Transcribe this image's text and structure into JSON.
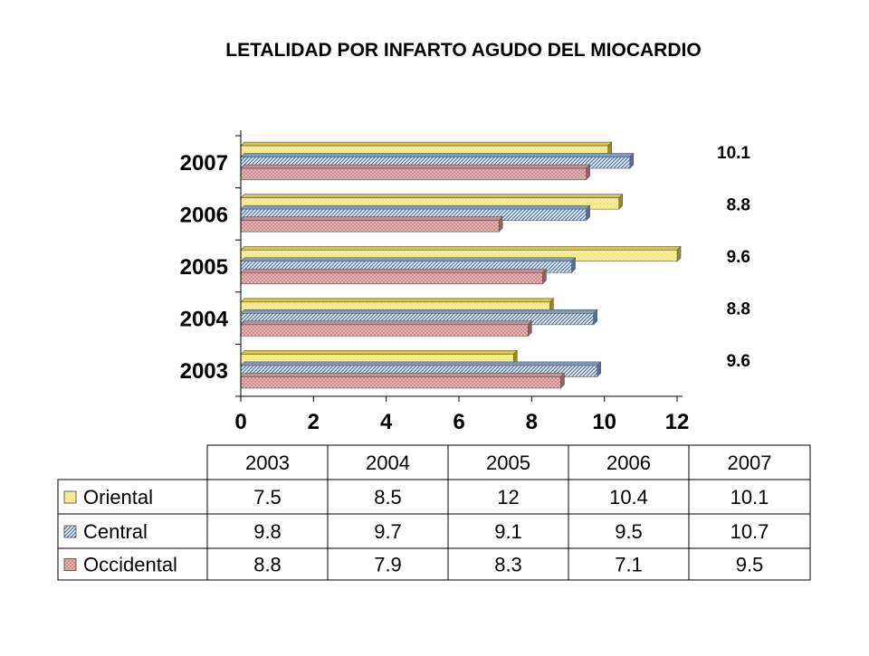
{
  "chart_data": {
    "type": "bar",
    "orientation": "horizontal",
    "title": "LETALIDAD POR INFARTO AGUDO DEL MIOCARDIO",
    "categories": [
      "2003",
      "2004",
      "2005",
      "2006",
      "2007"
    ],
    "series": [
      {
        "name": "Oriental",
        "values": [
          7.5,
          8.5,
          12,
          10.4,
          10.1
        ]
      },
      {
        "name": "Central",
        "values": [
          9.8,
          9.7,
          9.1,
          9.5,
          10.7
        ]
      },
      {
        "name": "Occidental",
        "values": [
          8.8,
          7.9,
          8.3,
          7.1,
          9.5
        ]
      }
    ],
    "xlim": [
      0,
      12
    ],
    "xticks": [
      "0",
      "2",
      "4",
      "6",
      "8",
      "10",
      "12"
    ],
    "annotations": [
      {
        "category": "2003",
        "text": "9.6"
      },
      {
        "category": "2004",
        "text": "8.8"
      },
      {
        "category": "2005",
        "text": "9.6"
      },
      {
        "category": "2006",
        "text": "8.8"
      },
      {
        "category": "2007",
        "text": "10.1"
      }
    ],
    "grid": false,
    "legend": "data-table-below",
    "colors": {
      "Oriental": "#ffe84a",
      "Central": "#8fb8e8",
      "Occidental": "#e8a8a8"
    }
  }
}
